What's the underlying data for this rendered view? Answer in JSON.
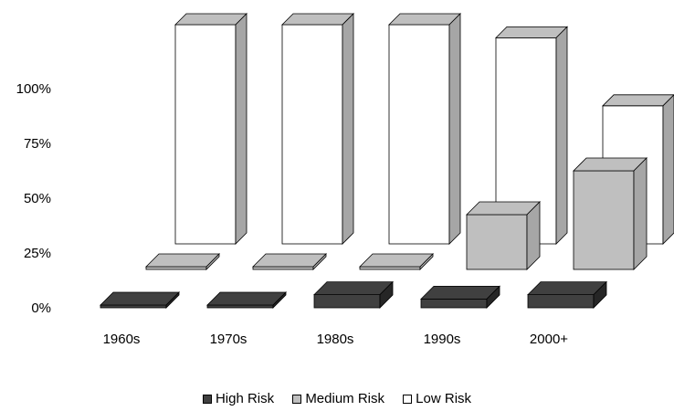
{
  "chart_data": {
    "type": "bar",
    "subtype": "3d-clustered-column",
    "categories": [
      "1960s",
      "1970s",
      "1980s",
      "1990s",
      "2000+"
    ],
    "series": [
      {
        "name": "High Risk",
        "values": [
          0,
          0,
          6,
          4,
          6
        ],
        "color": "#404040"
      },
      {
        "name": "Medium Risk",
        "values": [
          0,
          0,
          0,
          25,
          45
        ],
        "color": "#bfbfbf"
      },
      {
        "name": "Low Risk",
        "values": [
          100,
          100,
          100,
          94,
          63
        ],
        "color": "#ffffff"
      }
    ],
    "y_ticks": [
      "0%",
      "25%",
      "50%",
      "75%",
      "100%"
    ],
    "ylim": [
      0,
      100
    ],
    "legend": "bottom",
    "grid": false
  }
}
